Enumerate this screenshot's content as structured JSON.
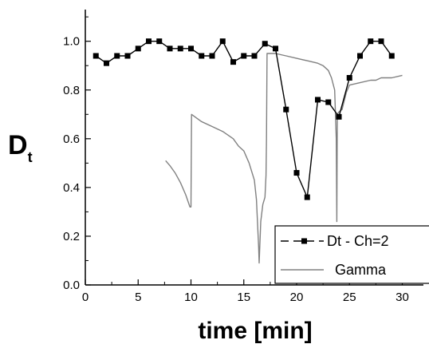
{
  "chart_data": {
    "type": "line",
    "xlabel": "time [min]",
    "ylabel": "D",
    "ylabel_subscript": "t",
    "xlim": [
      0,
      32
    ],
    "ylim": [
      0,
      1.13
    ],
    "xticks": [
      0,
      5,
      10,
      15,
      20,
      25,
      30
    ],
    "yticks": [
      0.0,
      0.2,
      0.4,
      0.6,
      0.8,
      1.0
    ],
    "xtick_labels": [
      "0",
      "5",
      "10",
      "15",
      "20",
      "25",
      "30"
    ],
    "ytick_labels": [
      "0.0",
      "0.2",
      "0.4",
      "0.6",
      "0.8",
      "1.0"
    ],
    "grid": false,
    "legend_position": "bottom-right",
    "series": [
      {
        "name": "Dt - Ch=2",
        "style": "line-square-markers",
        "color": "#000000",
        "x": [
          1,
          2,
          3,
          4,
          5,
          6,
          7,
          8,
          9,
          10,
          11,
          12,
          13,
          14,
          15,
          16,
          17,
          18,
          19,
          20,
          21,
          22,
          23,
          24,
          25,
          26,
          27,
          28,
          29
        ],
        "y": [
          0.94,
          0.91,
          0.94,
          0.94,
          0.97,
          1.0,
          1.0,
          0.97,
          0.97,
          0.97,
          0.94,
          0.94,
          1.0,
          0.915,
          0.94,
          0.94,
          0.99,
          0.97,
          0.72,
          0.46,
          0.36,
          0.76,
          0.75,
          0.69,
          0.85,
          0.94,
          1.0,
          1.0,
          0.94
        ]
      },
      {
        "name": "Gamma",
        "style": "line",
        "color": "#808080",
        "x": [
          7.6,
          8.0,
          8.5,
          9.0,
          9.5,
          9.9,
          10.0,
          10.05,
          11,
          12,
          13,
          14,
          14.5,
          15,
          15.5,
          16.0,
          16.2,
          16.4,
          16.45,
          16.6,
          16.8,
          17.0,
          17.1,
          17.15,
          17.2,
          18,
          19,
          20,
          21,
          22,
          22.5,
          23.0,
          23.3,
          23.6,
          23.75,
          23.8,
          23.85,
          24.0,
          24.3,
          24.7,
          25.0,
          26,
          27,
          27.5,
          28,
          29,
          30
        ],
        "y": [
          0.51,
          0.49,
          0.46,
          0.42,
          0.37,
          0.32,
          0.32,
          0.7,
          0.67,
          0.65,
          0.63,
          0.6,
          0.57,
          0.55,
          0.5,
          0.43,
          0.35,
          0.16,
          0.09,
          0.26,
          0.33,
          0.36,
          0.45,
          0.6,
          0.95,
          0.95,
          0.94,
          0.93,
          0.92,
          0.91,
          0.9,
          0.88,
          0.85,
          0.8,
          0.6,
          0.26,
          0.7,
          0.71,
          0.72,
          0.79,
          0.82,
          0.83,
          0.84,
          0.84,
          0.85,
          0.85,
          0.86
        ]
      }
    ]
  }
}
